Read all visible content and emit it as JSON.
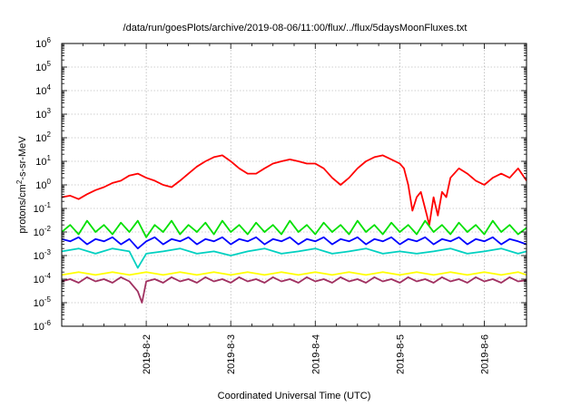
{
  "chart_data": {
    "type": "line",
    "title": "/data/run/goesPlots/archive/2019-08-06/11:00/flux/../flux/5daysMoonFluxes.txt",
    "xlabel": "Coordinated Universal Time (UTC)",
    "ylabel": "protons/cm2-s-sr-MeV",
    "ylabel_parts": [
      "protons/cm",
      "2",
      "-s-sr-MeV"
    ],
    "y_scale": "log",
    "ylim": [
      1e-06,
      1000000.0
    ],
    "xlim": [
      1.0,
      6.5
    ],
    "grid": true,
    "legend": "none",
    "x_ticks": [
      {
        "value": 2,
        "label": "2019-8-2"
      },
      {
        "value": 3,
        "label": "2019-8-3"
      },
      {
        "value": 4,
        "label": "2019-8-4"
      },
      {
        "value": 5,
        "label": "2019-8-5"
      },
      {
        "value": 6,
        "label": "2019-8-6"
      }
    ],
    "y_ticks": [
      {
        "exp": -6,
        "base": "10",
        "sup": "-6"
      },
      {
        "exp": -5,
        "base": "10",
        "sup": "-5"
      },
      {
        "exp": -4,
        "base": "10",
        "sup": "-4"
      },
      {
        "exp": -3,
        "base": "10",
        "sup": "-3"
      },
      {
        "exp": -2,
        "base": "10",
        "sup": "-2"
      },
      {
        "exp": -1,
        "base": "10",
        "sup": "-1"
      },
      {
        "exp": 0,
        "base": "10",
        "sup": "0"
      },
      {
        "exp": 1,
        "base": "10",
        "sup": "1"
      },
      {
        "exp": 2,
        "base": "10",
        "sup": "2"
      },
      {
        "exp": 3,
        "base": "10",
        "sup": "3"
      },
      {
        "exp": 4,
        "base": "10",
        "sup": "4"
      },
      {
        "exp": 5,
        "base": "10",
        "sup": "5"
      },
      {
        "exp": 6,
        "base": "10",
        "sup": "6"
      }
    ],
    "series": [
      {
        "color": "#ff0000",
        "x": [
          1.0,
          1.1,
          1.2,
          1.3,
          1.4,
          1.5,
          1.6,
          1.7,
          1.8,
          1.9,
          2.0,
          2.1,
          2.2,
          2.3,
          2.4,
          2.5,
          2.6,
          2.7,
          2.8,
          2.9,
          3.0,
          3.1,
          3.2,
          3.3,
          3.4,
          3.5,
          3.6,
          3.7,
          3.8,
          3.9,
          4.0,
          4.1,
          4.2,
          4.3,
          4.4,
          4.5,
          4.6,
          4.7,
          4.8,
          4.9,
          5.0,
          5.05,
          5.1,
          5.15,
          5.2,
          5.25,
          5.3,
          5.35,
          5.4,
          5.45,
          5.5,
          5.55,
          5.6,
          5.7,
          5.8,
          5.9,
          6.0,
          6.1,
          6.2,
          6.3,
          6.4,
          6.5
        ],
        "y": [
          0.3,
          0.35,
          0.25,
          0.4,
          0.6,
          0.8,
          1.2,
          1.5,
          2.5,
          3.0,
          2.0,
          1.5,
          1.0,
          0.8,
          1.5,
          3.0,
          6.0,
          10,
          15,
          18,
          10,
          5.0,
          3.0,
          3.0,
          5.0,
          8.0,
          10,
          12,
          10,
          8.0,
          8.0,
          5.0,
          2.0,
          1.0,
          2.0,
          5.0,
          10,
          15,
          18,
          12,
          8.0,
          5.0,
          1.0,
          0.08,
          0.3,
          0.5,
          0.1,
          0.02,
          0.3,
          0.05,
          0.5,
          0.3,
          2.0,
          5.0,
          3.0,
          1.5,
          1.0,
          2.0,
          3.0,
          2.0,
          5.0,
          1.5
        ]
      },
      {
        "color": "#00e000",
        "x": [
          1.0,
          1.1,
          1.2,
          1.3,
          1.4,
          1.5,
          1.6,
          1.7,
          1.8,
          1.9,
          2.0,
          2.1,
          2.2,
          2.3,
          2.4,
          2.5,
          2.6,
          2.7,
          2.8,
          2.9,
          3.0,
          3.1,
          3.2,
          3.3,
          3.4,
          3.5,
          3.6,
          3.7,
          3.8,
          3.9,
          4.0,
          4.1,
          4.2,
          4.3,
          4.4,
          4.5,
          4.6,
          4.7,
          4.8,
          4.9,
          5.0,
          5.1,
          5.2,
          5.3,
          5.4,
          5.5,
          5.6,
          5.7,
          5.8,
          5.9,
          6.0,
          6.1,
          6.2,
          6.3,
          6.4,
          6.5
        ],
        "y": [
          0.01,
          0.02,
          0.008,
          0.03,
          0.01,
          0.02,
          0.008,
          0.025,
          0.01,
          0.03,
          0.006,
          0.02,
          0.01,
          0.03,
          0.008,
          0.02,
          0.01,
          0.025,
          0.008,
          0.03,
          0.01,
          0.02,
          0.008,
          0.025,
          0.01,
          0.02,
          0.008,
          0.03,
          0.01,
          0.02,
          0.008,
          0.025,
          0.01,
          0.02,
          0.008,
          0.03,
          0.01,
          0.02,
          0.008,
          0.025,
          0.01,
          0.02,
          0.008,
          0.03,
          0.01,
          0.02,
          0.008,
          0.025,
          0.01,
          0.02,
          0.008,
          0.03,
          0.01,
          0.02,
          0.008,
          0.015
        ]
      },
      {
        "color": "#00d0c0",
        "x": [
          1.0,
          1.2,
          1.4,
          1.6,
          1.8,
          1.9,
          2.0,
          2.2,
          2.4,
          2.6,
          2.8,
          3.0,
          3.2,
          3.4,
          3.6,
          3.8,
          4.0,
          4.2,
          4.4,
          4.6,
          4.8,
          5.0,
          5.2,
          5.4,
          5.6,
          5.8,
          6.0,
          6.2,
          6.4,
          6.5
        ],
        "y": [
          0.0015,
          0.002,
          0.0012,
          0.002,
          0.0015,
          0.0003,
          0.0012,
          0.0015,
          0.002,
          0.0012,
          0.0015,
          0.001,
          0.0015,
          0.002,
          0.0012,
          0.0015,
          0.002,
          0.0012,
          0.0015,
          0.002,
          0.0012,
          0.0015,
          0.0012,
          0.0015,
          0.002,
          0.0012,
          0.0015,
          0.002,
          0.0012,
          0.0015
        ]
      },
      {
        "color": "#0000ff",
        "x": [
          1.0,
          1.1,
          1.2,
          1.3,
          1.4,
          1.5,
          1.6,
          1.7,
          1.8,
          1.9,
          2.0,
          2.1,
          2.2,
          2.3,
          2.4,
          2.5,
          2.6,
          2.7,
          2.8,
          2.9,
          3.0,
          3.1,
          3.2,
          3.3,
          3.4,
          3.5,
          3.6,
          3.7,
          3.8,
          3.9,
          4.0,
          4.1,
          4.2,
          4.3,
          4.4,
          4.5,
          4.6,
          4.7,
          4.8,
          4.9,
          5.0,
          5.1,
          5.2,
          5.3,
          5.4,
          5.5,
          5.6,
          5.7,
          5.8,
          5.9,
          6.0,
          6.1,
          6.2,
          6.3,
          6.4,
          6.5
        ],
        "y": [
          0.005,
          0.004,
          0.006,
          0.003,
          0.005,
          0.004,
          0.006,
          0.003,
          0.005,
          0.002,
          0.004,
          0.006,
          0.003,
          0.005,
          0.004,
          0.006,
          0.003,
          0.005,
          0.004,
          0.006,
          0.003,
          0.005,
          0.004,
          0.006,
          0.003,
          0.005,
          0.004,
          0.006,
          0.003,
          0.005,
          0.004,
          0.006,
          0.003,
          0.005,
          0.004,
          0.006,
          0.003,
          0.005,
          0.004,
          0.006,
          0.003,
          0.005,
          0.004,
          0.006,
          0.003,
          0.005,
          0.004,
          0.006,
          0.003,
          0.005,
          0.004,
          0.006,
          0.003,
          0.005,
          0.004,
          0.003
        ]
      },
      {
        "color": "#ffff00",
        "x": [
          1.0,
          1.2,
          1.4,
          1.6,
          1.8,
          2.0,
          2.2,
          2.4,
          2.6,
          2.8,
          3.0,
          3.2,
          3.4,
          3.6,
          3.8,
          4.0,
          4.2,
          4.4,
          4.6,
          4.8,
          5.0,
          5.2,
          5.4,
          5.6,
          5.8,
          6.0,
          6.2,
          6.4,
          6.5
        ],
        "y": [
          0.00015,
          0.0002,
          0.00015,
          0.0002,
          0.00015,
          0.0002,
          0.00015,
          0.0002,
          0.00015,
          0.0002,
          0.00015,
          0.0002,
          0.00015,
          0.0002,
          0.00015,
          0.0002,
          0.00015,
          0.0002,
          0.00015,
          0.0002,
          0.00015,
          0.0002,
          0.00015,
          0.0002,
          0.00015,
          0.0002,
          0.00015,
          0.0002,
          0.00015
        ]
      },
      {
        "color": "#a03060",
        "x": [
          1.0,
          1.1,
          1.2,
          1.3,
          1.4,
          1.5,
          1.6,
          1.7,
          1.8,
          1.9,
          1.95,
          2.0,
          2.1,
          2.2,
          2.3,
          2.4,
          2.5,
          2.6,
          2.7,
          2.8,
          2.9,
          3.0,
          3.1,
          3.2,
          3.3,
          3.4,
          3.5,
          3.6,
          3.7,
          3.8,
          3.9,
          4.0,
          4.1,
          4.2,
          4.3,
          4.4,
          4.5,
          4.6,
          4.7,
          4.8,
          4.9,
          5.0,
          5.1,
          5.2,
          5.3,
          5.4,
          5.5,
          5.6,
          5.7,
          5.8,
          5.9,
          6.0,
          6.1,
          6.2,
          6.3,
          6.4,
          6.5
        ],
        "y": [
          8e-05,
          0.0001,
          7e-05,
          0.00012,
          8e-05,
          0.0001,
          7e-05,
          0.00012,
          8e-05,
          3e-05,
          1e-05,
          8e-05,
          0.0001,
          7e-05,
          0.00012,
          8e-05,
          0.0001,
          7e-05,
          0.00012,
          8e-05,
          0.0001,
          7e-05,
          0.00012,
          8e-05,
          0.0001,
          7e-05,
          0.00012,
          8e-05,
          0.0001,
          7e-05,
          0.00012,
          8e-05,
          0.0001,
          7e-05,
          0.00012,
          8e-05,
          0.0001,
          7e-05,
          0.00012,
          8e-05,
          0.0001,
          7e-05,
          0.00012,
          8e-05,
          0.0001,
          7e-05,
          0.00012,
          8e-05,
          0.0001,
          7e-05,
          0.00012,
          8e-05,
          0.0001,
          7e-05,
          0.00012,
          8e-05,
          9e-05
        ]
      }
    ]
  }
}
